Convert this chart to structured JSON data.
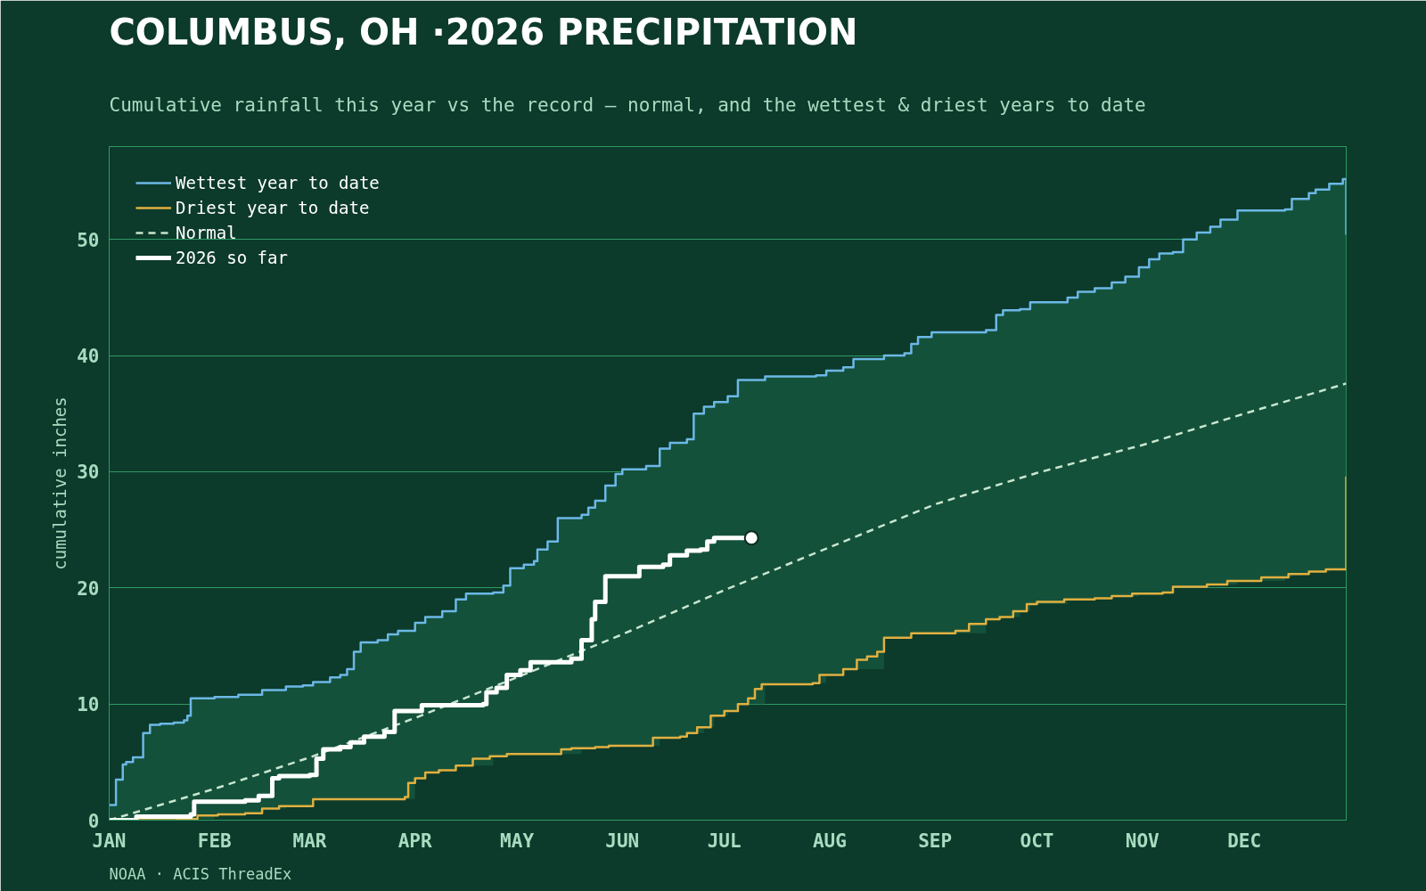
{
  "chart_data": {
    "type": "step",
    "title": "COLUMBUS, OH ·2026 PRECIPITATION",
    "subtitle": "Cumulative rainfall this year vs the record — normal, and the wettest & driest years to date",
    "ylabel": "cumulative inches",
    "annotations": [
      "NOAA · ACIS ThreadEx"
    ],
    "xlim": [
      "2026-01-01",
      "2026-12-31"
    ],
    "xticks": [
      {
        "value": "2026-01-01",
        "label": "JAN"
      },
      {
        "value": "2026-02-01",
        "label": "FEB"
      },
      {
        "value": "2026-03-01",
        "label": "MAR"
      },
      {
        "value": "2026-04-01",
        "label": "APR"
      },
      {
        "value": "2026-05-01",
        "label": "MAY"
      },
      {
        "value": "2026-06-01",
        "label": "JUN"
      },
      {
        "value": "2026-07-01",
        "label": "JUL"
      },
      {
        "value": "2026-08-01",
        "label": "AUG"
      },
      {
        "value": "2026-09-01",
        "label": "SEP"
      },
      {
        "value": "2026-10-01",
        "label": "OCT"
      },
      {
        "value": "2026-11-01",
        "label": "NOV"
      },
      {
        "value": "2026-12-01",
        "label": "DEC"
      }
    ],
    "ylim": [
      0,
      58
    ],
    "yticks": [
      0,
      10,
      20,
      30,
      40,
      50
    ],
    "grid": "y",
    "legend": "top left",
    "series": [
      {
        "name": "Wettest year to date",
        "color": "#6cb8e6",
        "x": [
          "2026-01-01",
          "2026-01-03",
          "2026-01-05",
          "2026-01-06",
          "2026-01-08",
          "2026-01-11",
          "2026-01-13",
          "2026-01-16",
          "2026-01-20",
          "2026-01-23",
          "2026-01-24",
          "2026-01-25",
          "2026-02-01",
          "2026-02-08",
          "2026-02-15",
          "2026-02-22",
          "2026-02-27",
          "2026-03-02",
          "2026-03-07",
          "2026-03-10",
          "2026-03-12",
          "2026-03-14",
          "2026-03-16",
          "2026-03-21",
          "2026-03-24",
          "2026-03-27",
          "2026-04-01",
          "2026-04-04",
          "2026-04-09",
          "2026-04-13",
          "2026-04-16",
          "2026-04-24",
          "2026-04-27",
          "2026-04-29",
          "2026-05-03",
          "2026-05-06",
          "2026-05-07",
          "2026-05-10",
          "2026-05-13",
          "2026-05-20",
          "2026-05-22",
          "2026-05-24",
          "2026-05-27",
          "2026-05-30",
          "2026-06-01",
          "2026-06-08",
          "2026-06-12",
          "2026-06-15",
          "2026-06-20",
          "2026-06-22",
          "2026-06-25",
          "2026-06-28",
          "2026-07-02",
          "2026-07-05",
          "2026-07-13",
          "2026-07-28",
          "2026-07-31",
          "2026-08-05",
          "2026-08-08",
          "2026-08-17",
          "2026-08-23",
          "2026-08-25",
          "2026-08-27",
          "2026-08-31",
          "2026-09-16",
          "2026-09-19",
          "2026-09-21",
          "2026-09-26",
          "2026-09-29",
          "2026-10-10",
          "2026-10-13",
          "2026-10-18",
          "2026-10-23",
          "2026-10-27",
          "2026-10-31",
          "2026-11-03",
          "2026-11-06",
          "2026-11-10",
          "2026-11-13",
          "2026-11-17",
          "2026-11-21",
          "2026-11-24",
          "2026-11-29",
          "2026-12-13",
          "2026-12-15",
          "2026-12-20",
          "2026-12-22",
          "2026-12-26",
          "2026-12-30",
          "2026-12-31"
        ],
        "values": [
          1.3,
          3.5,
          4.8,
          5.0,
          5.4,
          7.5,
          8.2,
          8.3,
          8.4,
          8.6,
          9.0,
          10.5,
          10.6,
          10.8,
          11.2,
          11.5,
          11.6,
          11.9,
          12.3,
          12.5,
          13.0,
          14.5,
          15.3,
          15.5,
          16.0,
          16.3,
          17.0,
          17.5,
          18.0,
          19.0,
          19.5,
          19.6,
          20.2,
          21.7,
          22.0,
          22.3,
          23.3,
          24.0,
          26.0,
          26.3,
          26.9,
          27.5,
          28.8,
          29.8,
          30.2,
          30.5,
          32.0,
          32.5,
          32.8,
          35.0,
          35.6,
          36.0,
          36.5,
          37.9,
          38.2,
          38.3,
          38.7,
          39.0,
          39.7,
          40.0,
          40.2,
          41.0,
          41.6,
          42.0,
          42.2,
          43.5,
          43.9,
          44.0,
          44.6,
          45.0,
          45.5,
          45.8,
          46.3,
          46.8,
          47.6,
          48.3,
          48.8,
          48.9,
          50.0,
          50.6,
          51.1,
          51.7,
          52.5,
          52.6,
          53.5,
          54.0,
          54.3,
          54.8,
          55.2,
          50.4
        ],
        "upper": [
          1.3,
          3.5,
          4.8,
          5.0,
          5.4,
          7.5,
          8.2,
          8.3,
          8.4,
          8.6,
          9.0,
          10.5,
          10.6,
          10.8,
          11.2,
          11.5,
          11.6,
          11.9,
          12.3,
          12.5,
          13.0,
          14.5,
          15.3,
          15.5,
          16.0,
          16.3,
          17.0,
          17.5,
          18.0,
          19.0,
          19.5,
          19.6,
          20.2,
          21.7,
          22.0,
          22.3,
          23.3,
          24.0,
          26.0,
          26.3,
          26.9,
          27.5,
          28.8,
          29.8,
          30.2,
          30.5,
          32.0,
          32.5,
          32.8,
          35.0,
          35.6,
          36.0,
          36.5,
          37.9,
          38.2,
          38.3,
          38.7,
          39.0,
          39.7,
          40.0,
          40.2,
          41.0,
          41.6,
          42.0,
          42.2,
          43.5,
          43.9,
          44.0,
          44.6,
          45.0,
          45.5,
          45.8,
          46.3,
          46.8,
          47.6,
          48.3,
          48.8,
          48.9,
          50.0,
          50.6,
          51.1,
          51.7,
          52.5,
          52.6,
          53.5,
          54.0,
          54.3,
          54.8,
          55.2,
          50.4
        ],
        "lower": [
          0,
          0,
          0,
          0,
          0,
          0,
          0,
          0,
          0,
          0.1,
          0.1,
          0.1,
          0.4,
          0.5,
          1.0,
          1.2,
          1.2,
          1.8,
          1.8,
          1.8,
          1.8,
          1.8,
          1.8,
          1.8,
          1.8,
          1.8,
          3.6,
          4.1,
          4.3,
          4.7,
          4.7,
          5.5,
          5.5,
          5.7,
          5.7,
          5.7,
          5.7,
          5.7,
          5.7,
          6.2,
          6.2,
          6.3,
          6.3,
          6.4,
          6.4,
          6.4,
          7.1,
          7.1,
          7.5,
          7.5,
          8.0,
          9.0,
          9.4,
          10.0,
          11.7,
          11.8,
          12.5,
          13.0,
          13.0,
          15.7,
          15.7,
          16.1,
          16.1,
          16.1,
          17.3,
          17.3,
          17.5,
          18.0,
          18.6,
          19.0,
          19.0,
          19.1,
          19.3,
          19.3,
          19.5,
          19.5,
          19.5,
          20.1,
          20.1,
          20.1,
          20.3,
          20.3,
          20.6,
          20.9,
          21.2,
          21.4,
          21.4,
          21.6,
          21.6,
          29.6
        ]
      },
      {
        "name": "Driest year to date",
        "color": "#e0b040",
        "x": [
          "2026-01-01",
          "2026-01-21",
          "2026-01-27",
          "2026-02-02",
          "2026-02-10",
          "2026-02-15",
          "2026-02-20",
          "2026-03-02",
          "2026-03-29",
          "2026-03-30",
          "2026-04-01",
          "2026-04-04",
          "2026-04-08",
          "2026-04-13",
          "2026-04-18",
          "2026-04-23",
          "2026-04-28",
          "2026-05-14",
          "2026-05-17",
          "2026-05-24",
          "2026-05-28",
          "2026-06-10",
          "2026-06-18",
          "2026-06-20",
          "2026-06-23",
          "2026-06-27",
          "2026-07-01",
          "2026-07-05",
          "2026-07-08",
          "2026-07-10",
          "2026-07-12",
          "2026-07-27",
          "2026-07-29",
          "2026-08-05",
          "2026-08-09",
          "2026-08-12",
          "2026-08-15",
          "2026-08-17",
          "2026-08-25",
          "2026-09-07",
          "2026-09-11",
          "2026-09-16",
          "2026-09-20",
          "2026-09-24",
          "2026-09-28",
          "2026-10-01",
          "2026-10-09",
          "2026-10-18",
          "2026-10-23",
          "2026-10-29",
          "2026-11-07",
          "2026-11-10",
          "2026-11-20",
          "2026-11-26",
          "2026-12-06",
          "2026-12-14",
          "2026-12-20",
          "2026-12-25",
          "2026-12-31"
        ],
        "values": [
          0,
          0.1,
          0.4,
          0.5,
          0.6,
          1.0,
          1.2,
          1.8,
          2.0,
          3.2,
          3.6,
          4.1,
          4.3,
          4.7,
          5.3,
          5.5,
          5.7,
          6.1,
          6.2,
          6.3,
          6.4,
          7.1,
          7.2,
          7.5,
          8.0,
          9.0,
          9.4,
          10.0,
          10.5,
          11.3,
          11.7,
          11.8,
          12.5,
          13.0,
          13.8,
          14.1,
          14.5,
          15.7,
          16.1,
          16.3,
          16.9,
          17.3,
          17.5,
          18.0,
          18.6,
          18.8,
          19.0,
          19.1,
          19.3,
          19.5,
          19.6,
          20.1,
          20.3,
          20.6,
          20.9,
          21.2,
          21.4,
          21.6,
          29.6
        ]
      },
      {
        "name": "Normal",
        "color": "#c8e6d0",
        "type": "line",
        "line_style": "dashed",
        "x": [
          "2026-01-01",
          "2026-02-01",
          "2026-03-01",
          "2026-04-01",
          "2026-05-01",
          "2026-06-01",
          "2026-07-01",
          "2026-08-01",
          "2026-09-01",
          "2026-10-01",
          "2026-11-01",
          "2026-12-01",
          "2026-12-31"
        ],
        "values": [
          0,
          2.7,
          5.4,
          8.8,
          12.3,
          16.0,
          19.8,
          23.5,
          27.2,
          29.9,
          32.3,
          35.0,
          37.6
        ]
      },
      {
        "name": "2026 so far",
        "color": "#ffffff",
        "x": [
          "2026-01-01",
          "2026-01-09",
          "2026-01-25",
          "2026-01-26",
          "2026-02-10",
          "2026-02-14",
          "2026-02-18",
          "2026-02-20",
          "2026-03-01",
          "2026-03-03",
          "2026-03-05",
          "2026-03-10",
          "2026-03-13",
          "2026-03-17",
          "2026-03-23",
          "2026-03-26",
          "2026-04-03",
          "2026-04-21",
          "2026-04-22",
          "2026-04-25",
          "2026-04-28",
          "2026-05-02",
          "2026-05-05",
          "2026-05-17",
          "2026-05-20",
          "2026-05-23",
          "2026-05-24",
          "2026-05-27",
          "2026-06-05",
          "2026-06-06",
          "2026-06-13",
          "2026-06-15",
          "2026-06-20",
          "2026-06-24",
          "2026-06-26",
          "2026-06-28",
          "2026-07-09"
        ],
        "values": [
          0,
          0.3,
          0.5,
          1.6,
          1.7,
          2.1,
          3.6,
          3.8,
          3.9,
          5.3,
          6.1,
          6.3,
          6.7,
          7.2,
          7.6,
          9.4,
          9.9,
          10.0,
          11.0,
          11.4,
          12.5,
          12.9,
          13.6,
          13.9,
          15.5,
          17.3,
          18.8,
          21.0,
          21.0,
          21.8,
          22.0,
          22.8,
          23.2,
          23.3,
          24.0,
          24.3,
          24.3
        ]
      },
      {
        "type": "scatter",
        "color": "#ffffff",
        "marker": "circle",
        "x": [
          "2026-07-09"
        ],
        "values": [
          24.3
        ]
      }
    ]
  }
}
